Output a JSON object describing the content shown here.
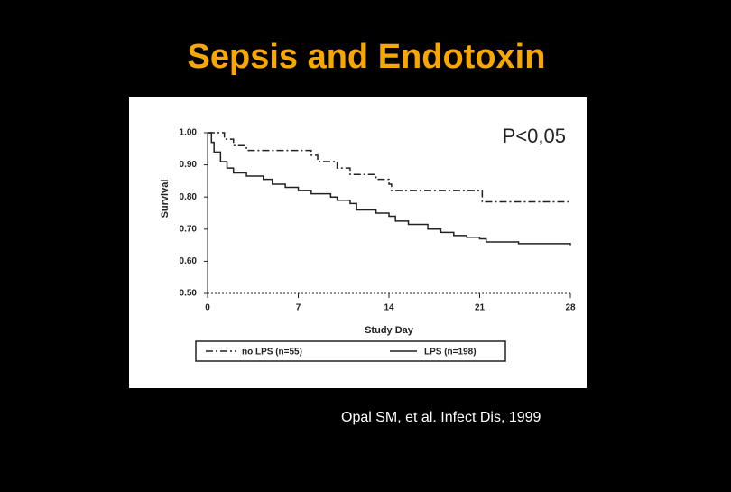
{
  "chart_data": {
    "type": "line",
    "step": true,
    "title": "Sepsis and Endotoxin",
    "title_color": "#f6a800",
    "annotation": "P<0,05",
    "citation": "Opal SM, et al. Infect Dis, 1999",
    "xlabel": "Study Day",
    "ylabel": "Survival",
    "xlim": [
      0,
      28
    ],
    "xticks": [
      0,
      7,
      14,
      21,
      28
    ],
    "ylim": [
      0.5,
      1
    ],
    "yticks": [
      {
        "value": 1,
        "label": "1.00"
      },
      {
        "value": 0.9,
        "label": "0.90"
      },
      {
        "value": 0.8,
        "label": "0.80"
      },
      {
        "value": 0.7,
        "label": "0.70"
      },
      {
        "value": 0.6,
        "label": "0.60"
      },
      {
        "value": 0.5,
        "label": "0.50"
      }
    ],
    "series": [
      {
        "name": "no LPS (n=55)",
        "color": "#222222",
        "style": "dashdot",
        "x": [
          0,
          1.3,
          2,
          3,
          8,
          8.5,
          10,
          11,
          13,
          14,
          14.2,
          21.2,
          28
        ],
        "values": [
          1,
          0.98,
          0.96,
          0.945,
          0.93,
          0.91,
          0.89,
          0.87,
          0.855,
          0.84,
          0.82,
          0.785,
          0.785
        ]
      },
      {
        "name": "LPS (n=198)",
        "color": "#222222",
        "style": "solid",
        "x": [
          0,
          0.3,
          0.5,
          1,
          1.5,
          2,
          3,
          4.3,
          5,
          6,
          7,
          8,
          9.5,
          10,
          11,
          11.5,
          13,
          14,
          14.5,
          15.5,
          17,
          18,
          19,
          20,
          21,
          21.5,
          24,
          28
        ],
        "values": [
          1,
          0.97,
          0.94,
          0.91,
          0.89,
          0.875,
          0.865,
          0.855,
          0.84,
          0.83,
          0.82,
          0.81,
          0.8,
          0.79,
          0.78,
          0.76,
          0.75,
          0.74,
          0.725,
          0.715,
          0.7,
          0.69,
          0.68,
          0.675,
          0.67,
          0.66,
          0.655,
          0.65
        ]
      }
    ]
  }
}
